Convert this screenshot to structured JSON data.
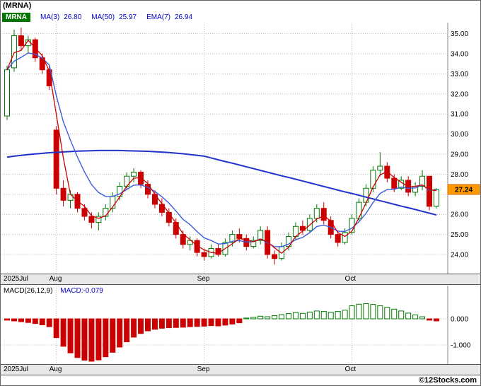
{
  "header": {
    "title": "(MRNA)"
  },
  "legend": {
    "symbol": "MRNA",
    "items": [
      {
        "label": "MA(3)",
        "value": "26.80"
      },
      {
        "label": "MA(50)",
        "value": "25.97"
      },
      {
        "label": "EMA(7)",
        "value": "26.94"
      }
    ]
  },
  "price_tag": "27.24",
  "macd_panel": {
    "label": "MACD(26,12,9)",
    "value_label": "MACD:-0.079",
    "y_ticks": [
      {
        "value": 0,
        "label": "0.000"
      },
      {
        "value": -1,
        "label": "-1.000"
      }
    ]
  },
  "footer": {
    "credit": "©12Stocks.com"
  },
  "colors": {
    "up": "#007700",
    "down": "#cc0000",
    "ma3": "#cc0000",
    "ma50": "#2233cc",
    "ema7": "#3b5bdd",
    "grid": "#b9b9b9",
    "tag_bg": "#ff9900",
    "tag_border": "#cc6600"
  },
  "chart_data": {
    "type": "candlestick",
    "title": "(MRNA)",
    "ylim": [
      22.9,
      35.55
    ],
    "y_ticks": [
      {
        "value": 35,
        "label": "35.00"
      },
      {
        "value": 34,
        "label": "34.00"
      },
      {
        "value": 33,
        "label": "33.00"
      },
      {
        "value": 32,
        "label": "32.00"
      },
      {
        "value": 31,
        "label": "31.00"
      },
      {
        "value": 30,
        "label": "30.00"
      },
      {
        "value": 29,
        "label": "29.00"
      },
      {
        "value": 28,
        "label": "28.00"
      },
      {
        "value": 27,
        "label": "",
        "hidden": true
      },
      {
        "value": 26,
        "label": "26.00"
      },
      {
        "value": 25,
        "label": "25.00"
      },
      {
        "value": 24,
        "label": "24.00"
      }
    ],
    "x_labels": [
      {
        "text": "2025Jul",
        "index": 0
      },
      {
        "text": "Aug",
        "index": 7
      },
      {
        "text": "Sep",
        "index": 28
      },
      {
        "text": "Oct",
        "index": 49
      }
    ],
    "last_close": 27.24,
    "candles": [
      [
        30.9,
        33.4,
        30.7,
        33.2
      ],
      [
        33.3,
        35.2,
        33.1,
        34.9
      ],
      [
        34.9,
        35.3,
        34.2,
        34.4
      ],
      [
        34.4,
        34.9,
        34.0,
        34.7
      ],
      [
        34.7,
        34.8,
        33.6,
        33.8
      ],
      [
        33.8,
        34.0,
        33.0,
        33.2
      ],
      [
        33.2,
        33.4,
        32.2,
        32.4
      ],
      [
        30.2,
        30.4,
        27.0,
        27.3
      ],
      [
        27.3,
        27.7,
        26.4,
        26.7
      ],
      [
        26.7,
        27.2,
        26.3,
        27.0
      ],
      [
        27.0,
        27.1,
        26.1,
        26.3
      ],
      [
        26.3,
        26.5,
        25.7,
        25.9
      ],
      [
        25.9,
        26.1,
        25.3,
        25.6
      ],
      [
        25.6,
        26.1,
        25.2,
        25.9
      ],
      [
        25.9,
        26.5,
        25.7,
        26.3
      ],
      [
        26.3,
        27.1,
        26.1,
        26.9
      ],
      [
        26.9,
        27.6,
        26.7,
        27.4
      ],
      [
        27.4,
        28.1,
        27.2,
        27.9
      ],
      [
        27.9,
        28.3,
        27.6,
        28.1
      ],
      [
        28.1,
        28.2,
        27.3,
        27.5
      ],
      [
        27.5,
        27.7,
        26.8,
        27.0
      ],
      [
        27.0,
        27.2,
        26.3,
        26.5
      ],
      [
        26.5,
        26.8,
        25.9,
        26.1
      ],
      [
        26.1,
        26.3,
        25.4,
        25.6
      ],
      [
        25.6,
        25.8,
        24.8,
        25.0
      ],
      [
        25.0,
        25.2,
        24.3,
        24.5
      ],
      [
        24.5,
        24.9,
        24.2,
        24.7
      ],
      [
        24.7,
        24.8,
        23.9,
        24.1
      ],
      [
        24.1,
        24.3,
        23.7,
        23.9
      ],
      [
        23.9,
        24.5,
        23.8,
        24.3
      ],
      [
        24.3,
        24.5,
        23.9,
        24.0
      ],
      [
        24.0,
        24.8,
        23.9,
        24.6
      ],
      [
        24.6,
        25.2,
        24.4,
        25.0
      ],
      [
        25.0,
        25.3,
        24.6,
        24.8
      ],
      [
        24.8,
        25.0,
        24.2,
        24.4
      ],
      [
        24.4,
        24.9,
        24.3,
        24.7
      ],
      [
        24.7,
        25.4,
        24.5,
        25.2
      ],
      [
        25.2,
        25.4,
        23.8,
        24.0
      ],
      [
        24.0,
        24.2,
        23.5,
        23.8
      ],
      [
        23.8,
        24.6,
        23.7,
        24.4
      ],
      [
        24.4,
        25.1,
        24.2,
        24.9
      ],
      [
        24.9,
        25.6,
        24.7,
        25.4
      ],
      [
        25.4,
        25.7,
        25.0,
        25.2
      ],
      [
        25.2,
        26.0,
        25.1,
        25.8
      ],
      [
        25.8,
        26.5,
        25.6,
        26.3
      ],
      [
        26.3,
        26.6,
        25.5,
        25.7
      ],
      [
        25.7,
        25.9,
        24.8,
        25.0
      ],
      [
        25.0,
        25.2,
        24.4,
        24.6
      ],
      [
        24.6,
        25.3,
        24.5,
        25.1
      ],
      [
        25.1,
        26.0,
        25.0,
        25.8
      ],
      [
        25.8,
        26.8,
        25.7,
        26.6
      ],
      [
        26.6,
        27.5,
        26.4,
        27.3
      ],
      [
        27.3,
        28.4,
        27.1,
        28.2
      ],
      [
        28.2,
        29.1,
        27.9,
        28.4
      ],
      [
        28.4,
        28.6,
        27.6,
        27.8
      ],
      [
        27.8,
        28.0,
        27.1,
        27.3
      ],
      [
        27.3,
        27.9,
        27.2,
        27.7
      ],
      [
        27.7,
        27.9,
        26.9,
        27.1
      ],
      [
        27.1,
        27.6,
        26.9,
        27.4
      ],
      [
        27.4,
        28.2,
        27.2,
        27.9
      ],
      [
        27.9,
        27.9,
        26.2,
        26.4
      ],
      [
        26.4,
        27.3,
        26.3,
        27.24
      ]
    ],
    "ma50": [
      28.85,
      28.9,
      28.94,
      28.98,
      29.01,
      29.04,
      29.07,
      29.09,
      29.11,
      29.13,
      29.15,
      29.16,
      29.17,
      29.18,
      29.18,
      29.18,
      29.18,
      29.17,
      29.16,
      29.15,
      29.14,
      29.12,
      29.1,
      29.08,
      29.05,
      29.02,
      28.98,
      28.94,
      28.9,
      28.81,
      28.72,
      28.63,
      28.55,
      28.46,
      28.37,
      28.28,
      28.19,
      28.1,
      28.01,
      27.92,
      27.84,
      27.75,
      27.66,
      27.57,
      27.48,
      27.39,
      27.3,
      27.21,
      27.12,
      27.04,
      26.95,
      26.86,
      26.77,
      26.68,
      26.59,
      26.5,
      26.41,
      26.33,
      26.24,
      26.15,
      26.06,
      25.97
    ],
    "macd": {
      "params": "26,12,9",
      "last": -0.079,
      "ylim": [
        -1.75,
        0.65
      ],
      "values": [
        -0.05,
        -0.08,
        -0.11,
        -0.14,
        -0.18,
        -0.23,
        -0.3,
        -0.72,
        -1.05,
        -1.3,
        -1.48,
        -1.58,
        -1.62,
        -1.57,
        -1.45,
        -1.28,
        -1.08,
        -0.88,
        -0.7,
        -0.56,
        -0.46,
        -0.4,
        -0.36,
        -0.34,
        -0.33,
        -0.32,
        -0.3,
        -0.29,
        -0.28,
        -0.26,
        -0.27,
        -0.24,
        -0.2,
        -0.15,
        0.03,
        0.06,
        0.1,
        0.08,
        0.12,
        0.16,
        0.2,
        0.24,
        0.21,
        0.26,
        0.3,
        0.28,
        0.25,
        0.28,
        0.33,
        0.5,
        0.56,
        0.58,
        0.55,
        0.5,
        0.44,
        0.37,
        0.3,
        0.22,
        0.15,
        0.08,
        -0.05,
        -0.079
      ]
    }
  }
}
